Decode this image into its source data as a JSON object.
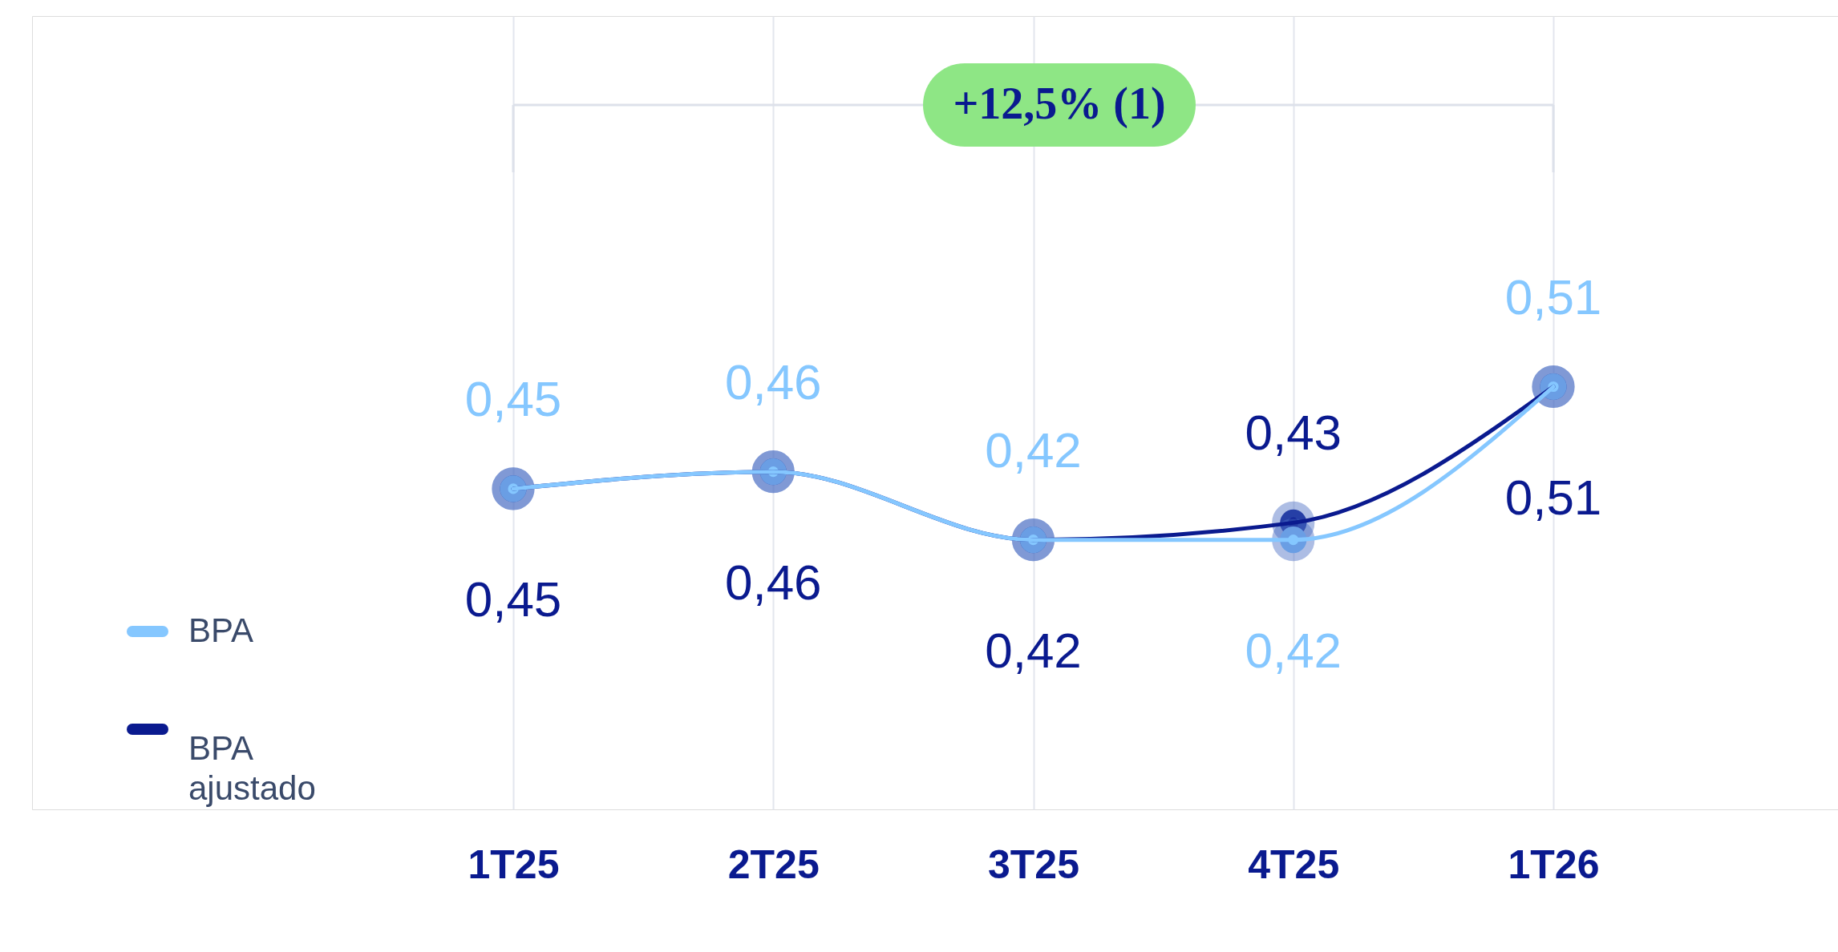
{
  "chart_data": {
    "type": "line",
    "categories": [
      "1T25",
      "2T25",
      "3T25",
      "4T25",
      "1T26"
    ],
    "series": [
      {
        "name": "BPA",
        "color": "#85c7ff",
        "values": [
          0.45,
          0.46,
          0.42,
          0.42,
          0.51
        ],
        "value_labels": [
          "0,45",
          "0,46",
          "0,42",
          "0,42",
          "0,51"
        ]
      },
      {
        "name": "BPA ajustado",
        "color": "#0a1a8f",
        "values": [
          0.45,
          0.46,
          0.42,
          0.43,
          0.51
        ],
        "value_labels": [
          "0,45",
          "0,46",
          "0,42",
          "0,43",
          "0,51"
        ]
      }
    ],
    "annotations": [
      "+12,5% (1)"
    ],
    "legend": "left",
    "grid": "x",
    "marker": "circle",
    "line_style": "solid"
  }
}
